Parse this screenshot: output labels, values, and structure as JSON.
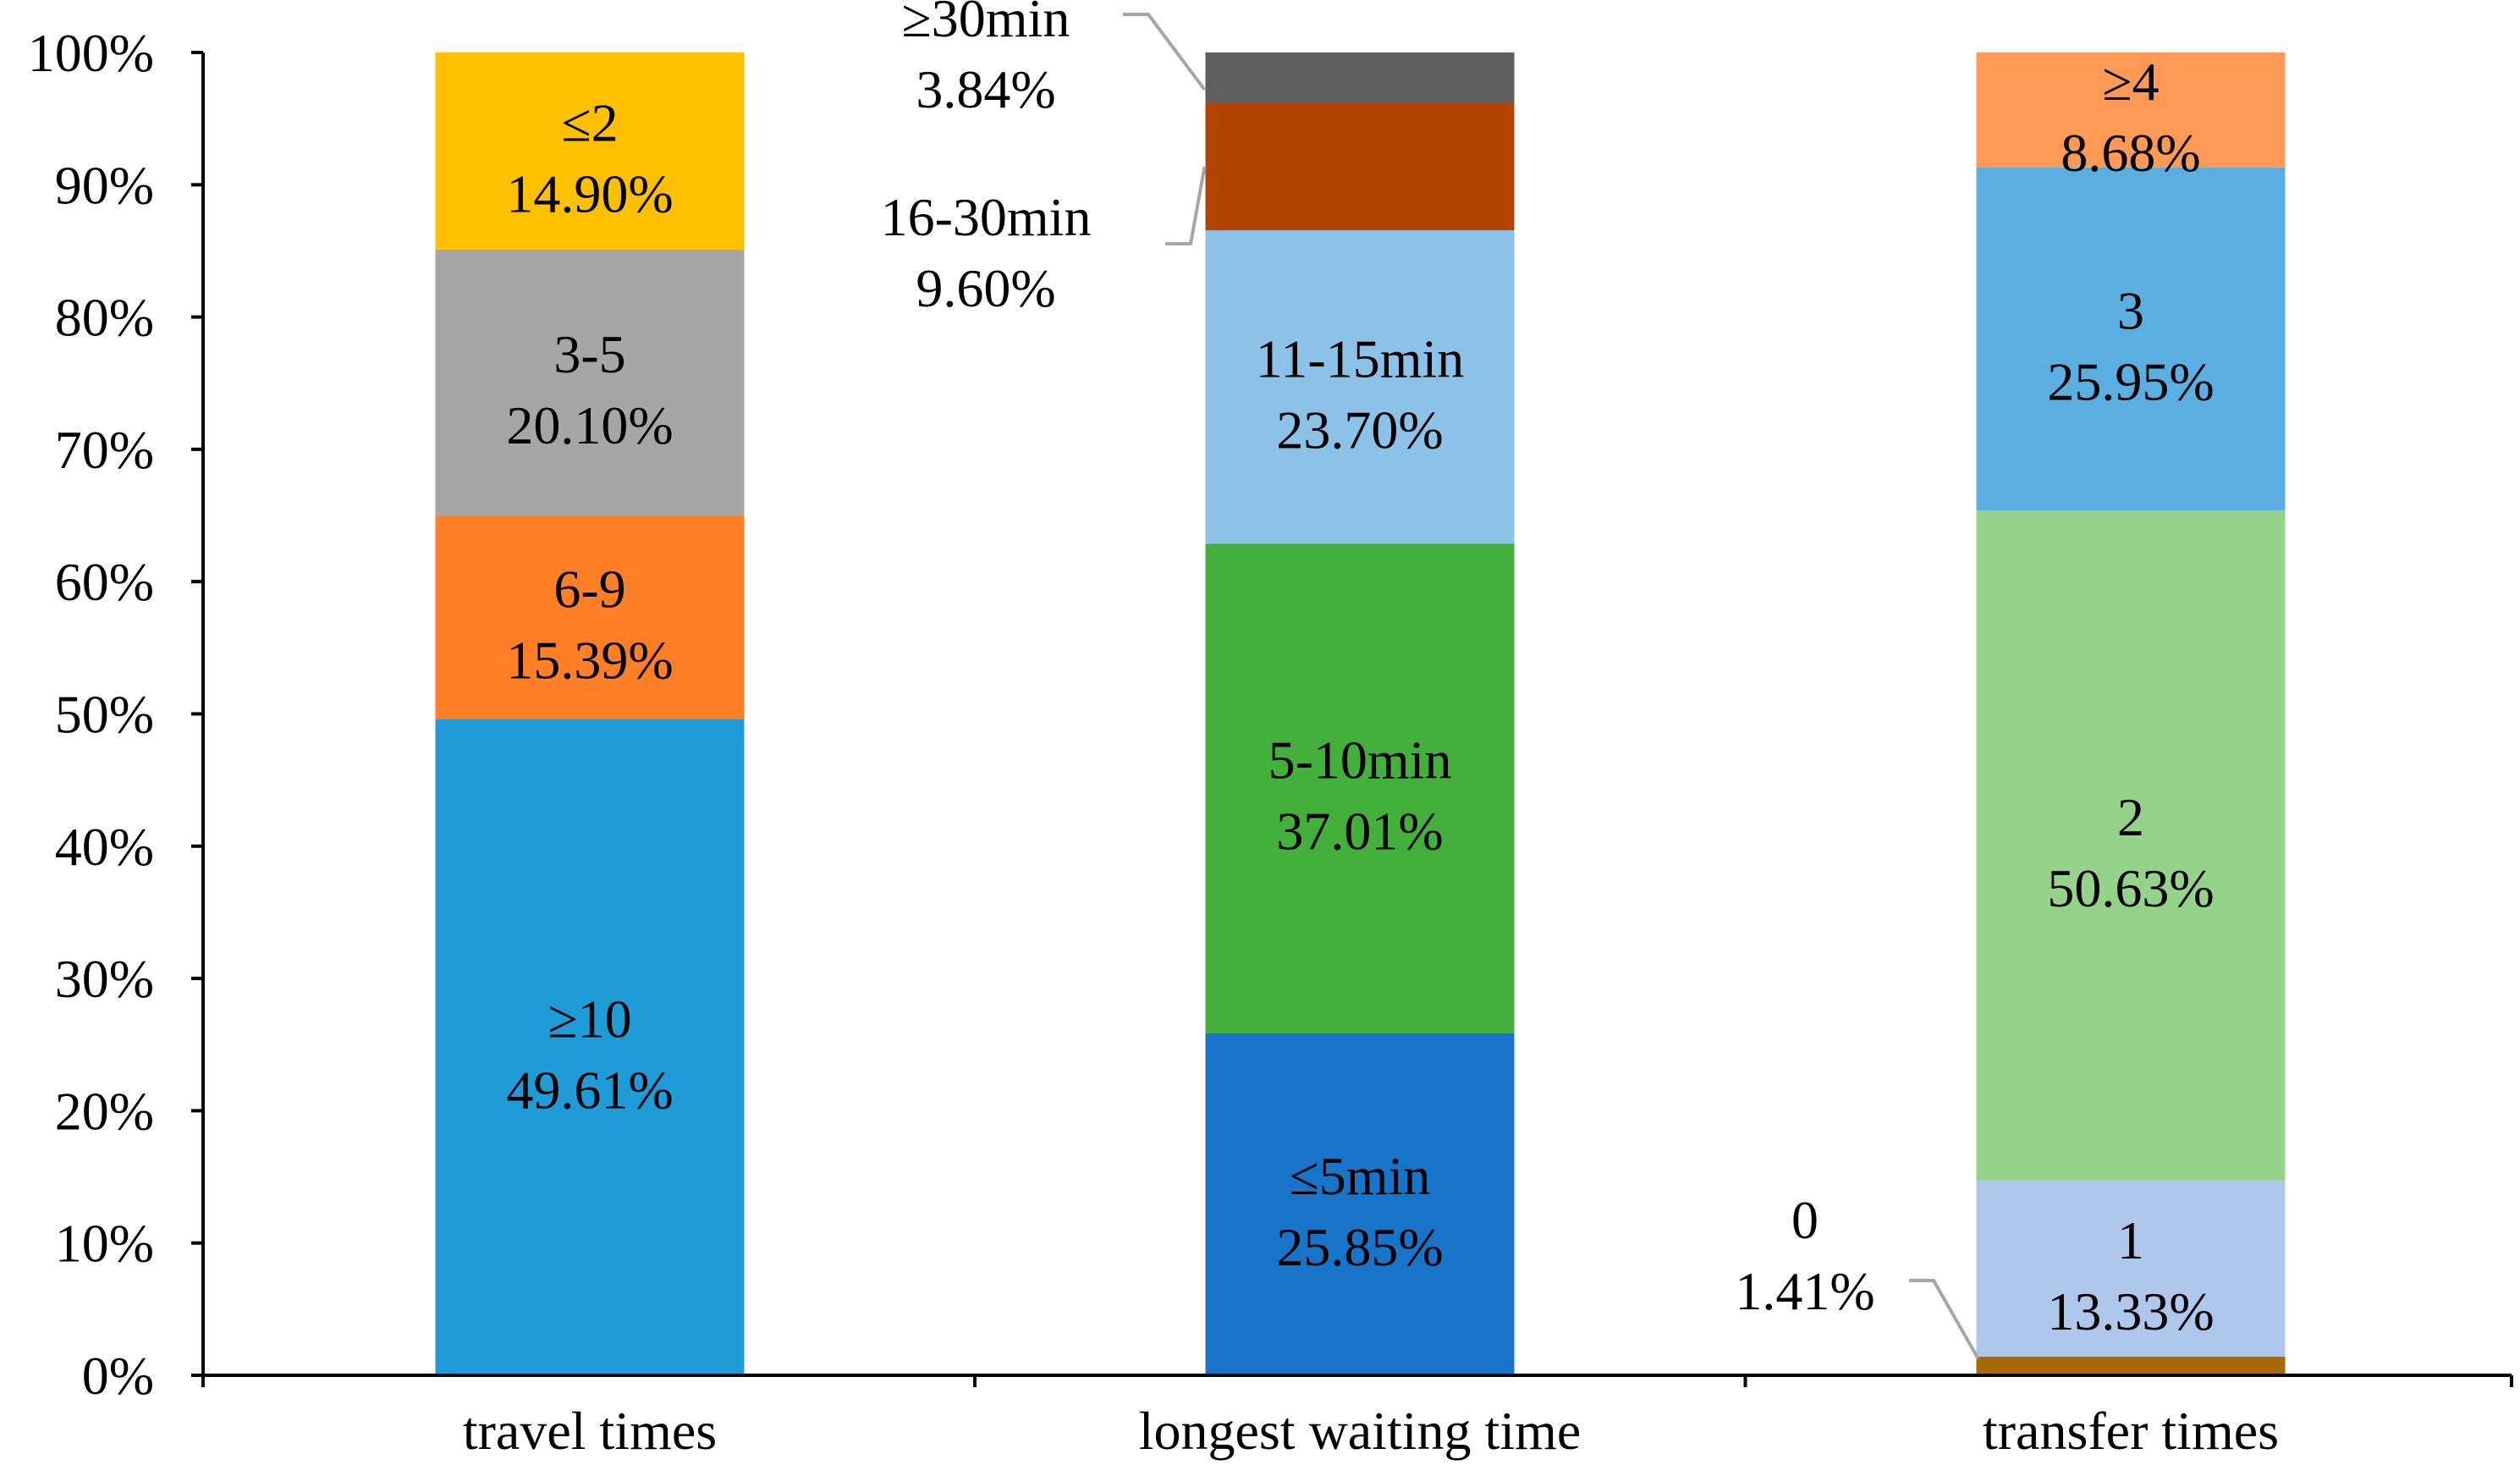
{
  "chart_data": {
    "type": "bar",
    "stacked": true,
    "title": "",
    "xlabel": "",
    "ylabel": "",
    "ylim": [
      0,
      100
    ],
    "y_tick_step": 10,
    "y_tick_labels": [
      "0%",
      "10%",
      "20%",
      "30%",
      "40%",
      "50%",
      "60%",
      "70%",
      "80%",
      "90%",
      "100%"
    ],
    "grid": false,
    "legend": "none",
    "categories": [
      "travel times",
      "longest waiting time",
      "transfer times"
    ],
    "stacks": [
      {
        "category": "travel times",
        "segments": [
          {
            "name": "≥10",
            "value": 49.61,
            "label": "49.61%",
            "color": "#1F9BD7"
          },
          {
            "name": "6-9",
            "value": 15.39,
            "label": "15.39%",
            "color": "#FF7F27"
          },
          {
            "name": "3-5",
            "value": 20.1,
            "label": "20.10%",
            "color": "#A6A6A6"
          },
          {
            "name": "≤2",
            "value": 14.9,
            "label": "14.90%",
            "color": "#FFC000"
          }
        ]
      },
      {
        "category": "longest waiting time",
        "segments": [
          {
            "name": "≤5min",
            "value": 25.85,
            "label": "25.85%",
            "color": "#1874C8"
          },
          {
            "name": "5-10min",
            "value": 37.01,
            "label": "37.01%",
            "color": "#43B03B"
          },
          {
            "name": "11-15min",
            "value": 23.7,
            "label": "23.70%",
            "color": "#8CC2E8"
          },
          {
            "name": "16-30min",
            "value": 9.6,
            "label": "9.60%",
            "color": "#B24400",
            "callout": "left"
          },
          {
            "name": "≥30min",
            "value": 3.84,
            "label": "3.84%",
            "color": "#5F5F5F",
            "callout": "left"
          }
        ]
      },
      {
        "category": "transfer times",
        "segments": [
          {
            "name": "0",
            "value": 1.41,
            "label": "1.41%",
            "color": "#A66A00",
            "callout": "left"
          },
          {
            "name": "1",
            "value": 13.33,
            "label": "13.33%",
            "color": "#AEC7EA"
          },
          {
            "name": "2",
            "value": 50.63,
            "label": "50.63%",
            "color": "#96D38A"
          },
          {
            "name": "3",
            "value": 25.95,
            "label": "25.95%",
            "color": "#5BAEE0"
          },
          {
            "name": "≥4",
            "value": 8.68,
            "label": "8.68%",
            "color": "#FF9A56"
          }
        ]
      }
    ]
  }
}
